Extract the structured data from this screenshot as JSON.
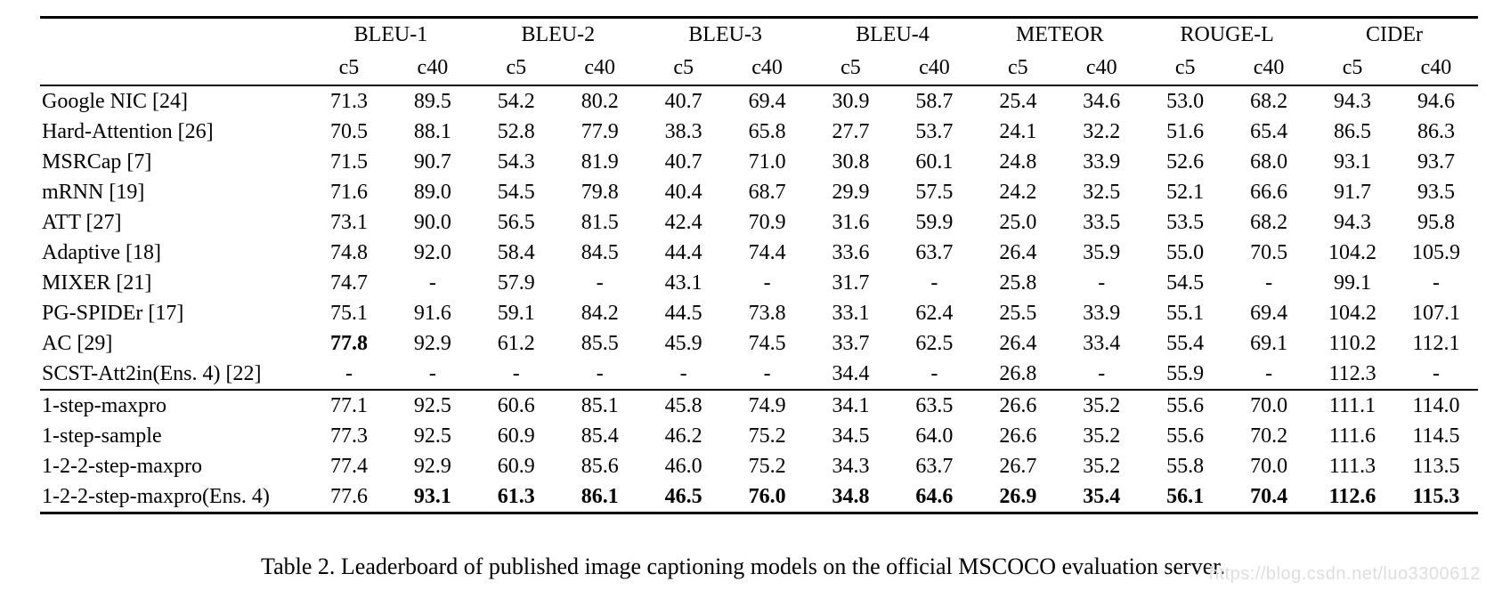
{
  "header": {
    "metrics": [
      "BLEU-1",
      "BLEU-2",
      "BLEU-3",
      "BLEU-4",
      "METEOR",
      "ROUGE-L",
      "CIDEr"
    ],
    "sub_labels": [
      "c5",
      "c40"
    ]
  },
  "rows": [
    {
      "model": "Google NIC [24]",
      "values": [
        "71.3",
        "89.5",
        "54.2",
        "80.2",
        "40.7",
        "69.4",
        "30.9",
        "58.7",
        "25.4",
        "34.6",
        "53.0",
        "68.2",
        "94.3",
        "94.6"
      ],
      "bold": []
    },
    {
      "model": "Hard-Attention [26]",
      "values": [
        "70.5",
        "88.1",
        "52.8",
        "77.9",
        "38.3",
        "65.8",
        "27.7",
        "53.7",
        "24.1",
        "32.2",
        "51.6",
        "65.4",
        "86.5",
        "86.3"
      ],
      "bold": []
    },
    {
      "model": "MSRCap [7]",
      "values": [
        "71.5",
        "90.7",
        "54.3",
        "81.9",
        "40.7",
        "71.0",
        "30.8",
        "60.1",
        "24.8",
        "33.9",
        "52.6",
        "68.0",
        "93.1",
        "93.7"
      ],
      "bold": []
    },
    {
      "model": "mRNN [19]",
      "values": [
        "71.6",
        "89.0",
        "54.5",
        "79.8",
        "40.4",
        "68.7",
        "29.9",
        "57.5",
        "24.2",
        "32.5",
        "52.1",
        "66.6",
        "91.7",
        "93.5"
      ],
      "bold": []
    },
    {
      "model": "ATT [27]",
      "values": [
        "73.1",
        "90.0",
        "56.5",
        "81.5",
        "42.4",
        "70.9",
        "31.6",
        "59.9",
        "25.0",
        "33.5",
        "53.5",
        "68.2",
        "94.3",
        "95.8"
      ],
      "bold": []
    },
    {
      "model": "Adaptive [18]",
      "values": [
        "74.8",
        "92.0",
        "58.4",
        "84.5",
        "44.4",
        "74.4",
        "33.6",
        "63.7",
        "26.4",
        "35.9",
        "55.0",
        "70.5",
        "104.2",
        "105.9"
      ],
      "bold": []
    },
    {
      "model": "MIXER [21]",
      "values": [
        "74.7",
        "-",
        "57.9",
        "-",
        "43.1",
        "-",
        "31.7",
        "-",
        "25.8",
        "-",
        "54.5",
        "-",
        "99.1",
        "-"
      ],
      "bold": []
    },
    {
      "model": "PG-SPIDEr [17]",
      "values": [
        "75.1",
        "91.6",
        "59.1",
        "84.2",
        "44.5",
        "73.8",
        "33.1",
        "62.4",
        "25.5",
        "33.9",
        "55.1",
        "69.4",
        "104.2",
        "107.1"
      ],
      "bold": []
    },
    {
      "model": "AC [29]",
      "values": [
        "77.8",
        "92.9",
        "61.2",
        "85.5",
        "45.9",
        "74.5",
        "33.7",
        "62.5",
        "26.4",
        "33.4",
        "55.4",
        "69.1",
        "110.2",
        "112.1"
      ],
      "bold": [
        0
      ]
    },
    {
      "model": "SCST-Att2in(Ens. 4) [22]",
      "values": [
        "-",
        "-",
        "-",
        "-",
        "-",
        "-",
        "34.4",
        "-",
        "26.8",
        "-",
        "55.9",
        "-",
        "112.3",
        "-"
      ],
      "bold": [],
      "group_end": true
    },
    {
      "model": "1-step-maxpro",
      "values": [
        "77.1",
        "92.5",
        "60.6",
        "85.1",
        "45.8",
        "74.9",
        "34.1",
        "63.5",
        "26.6",
        "35.2",
        "55.6",
        "70.0",
        "111.1",
        "114.0"
      ],
      "bold": []
    },
    {
      "model": "1-step-sample",
      "values": [
        "77.3",
        "92.5",
        "60.9",
        "85.4",
        "46.2",
        "75.2",
        "34.5",
        "64.0",
        "26.6",
        "35.2",
        "55.6",
        "70.2",
        "111.6",
        "114.5"
      ],
      "bold": []
    },
    {
      "model": "1-2-2-step-maxpro",
      "values": [
        "77.4",
        "92.9",
        "60.9",
        "85.6",
        "46.0",
        "75.2",
        "34.3",
        "63.7",
        "26.7",
        "35.2",
        "55.8",
        "70.0",
        "111.3",
        "113.5"
      ],
      "bold": []
    },
    {
      "model": "1-2-2-step-maxpro(Ens. 4)",
      "values": [
        "77.6",
        "93.1",
        "61.3",
        "86.1",
        "46.5",
        "76.0",
        "34.8",
        "64.6",
        "26.9",
        "35.4",
        "56.1",
        "70.4",
        "112.6",
        "115.3"
      ],
      "bold": [
        1,
        2,
        3,
        4,
        5,
        6,
        7,
        8,
        9,
        10,
        11,
        12,
        13
      ]
    }
  ],
  "caption": "Table 2. Leaderboard of published image captioning models on the official MSCOCO evaluation server.",
  "watermark": "https://blog.csdn.net/luo3300612",
  "colors": {
    "text": "#000000",
    "rule": "#000000",
    "background": "#ffffff",
    "watermark": "#dddee0"
  }
}
